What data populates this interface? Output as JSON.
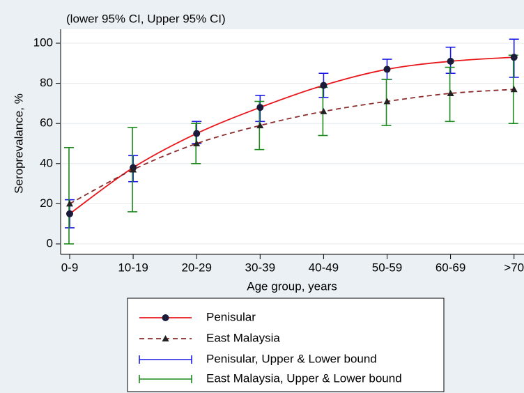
{
  "chart_data": {
    "type": "line",
    "subtitle": "(lower 95% CI, Upper 95% CI)",
    "y_label": "Seroprevalance, %",
    "x_label": "Age group, years",
    "categories": [
      "0-9",
      "10-19",
      "20-29",
      "30-39",
      "40-49",
      "50-59",
      "60-69",
      ">70"
    ],
    "ylim": [
      -5,
      106
    ],
    "yticks": [
      0,
      20,
      40,
      60,
      80,
      100
    ],
    "series": [
      {
        "name": "Penisular",
        "color": "#e8161b",
        "marker": "circle",
        "dash": "solid",
        "values": [
          15,
          38,
          55,
          68,
          79,
          87,
          91,
          93
        ]
      },
      {
        "name": "East Malaysia",
        "color": "#8b2a2a",
        "marker": "triangle",
        "dash": "dashed",
        "values": [
          20,
          37,
          50,
          59,
          66,
          71,
          75,
          77
        ]
      }
    ],
    "intervals": [
      {
        "name": "Penisular, Upper & Lower bound",
        "color": "#1a1ae6",
        "lower": [
          8,
          31,
          50,
          61,
          73,
          82,
          85,
          83
        ],
        "upper": [
          22,
          44,
          61,
          74,
          85,
          92,
          98,
          102
        ]
      },
      {
        "name": "East Malaysia, Upper & Lower bound",
        "color": "#1a8a1a",
        "lower": [
          0,
          16,
          40,
          47,
          54,
          59,
          61,
          60
        ],
        "upper": [
          48,
          58,
          60,
          71,
          78,
          82,
          88,
          94
        ]
      }
    ]
  }
}
